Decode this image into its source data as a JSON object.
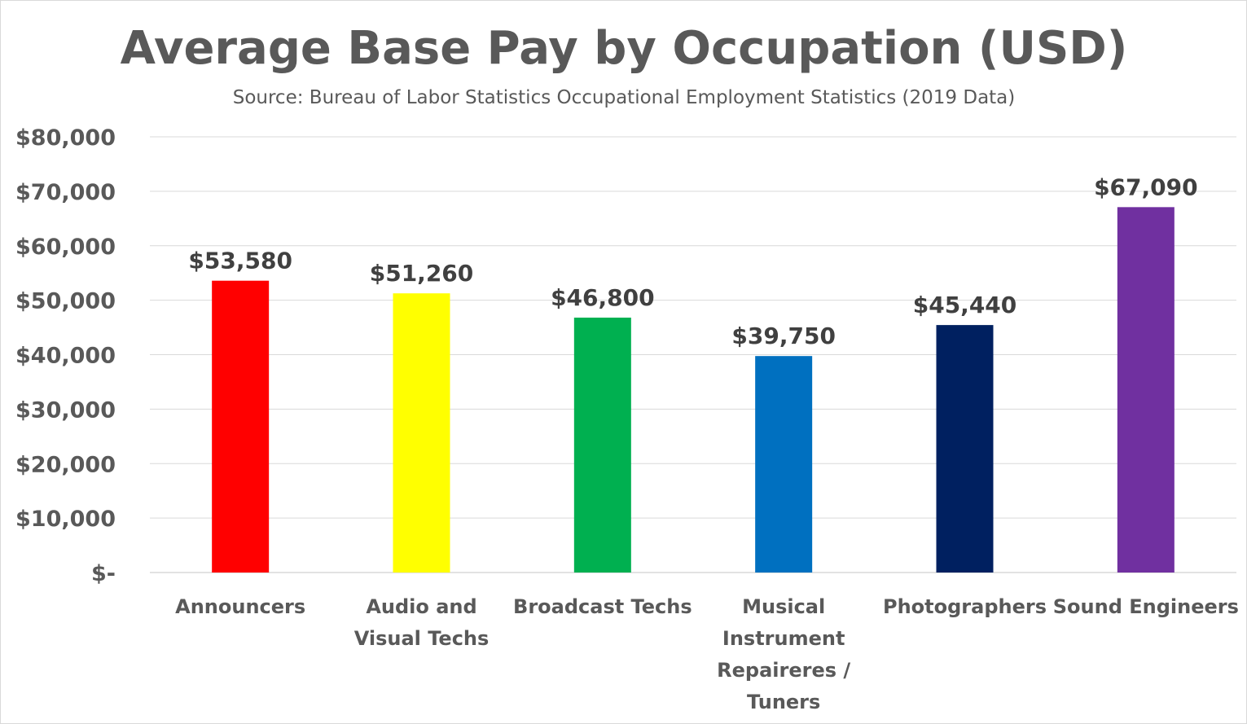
{
  "chart_data": {
    "type": "bar",
    "title": "Average Base Pay by Occupation (USD)",
    "subtitle": "Source: Bureau of Labor Statistics Occupational Employment Statistics (2019 Data)",
    "xlabel": "",
    "ylabel": "",
    "ylim": [
      0,
      80000
    ],
    "ytick_values": [
      0,
      10000,
      20000,
      30000,
      40000,
      50000,
      60000,
      70000,
      80000
    ],
    "ytick_labels": [
      "$-",
      "$10,000",
      "$20,000",
      "$30,000",
      "$40,000",
      "$50,000",
      "$60,000",
      "$70,000",
      "$80,000"
    ],
    "grid": true,
    "legend": "none",
    "categories": [
      [
        "Announcers"
      ],
      [
        "Audio and",
        "Visual Techs"
      ],
      [
        "Broadcast Techs"
      ],
      [
        "Musical",
        "Instrument",
        "Repaireres /",
        "Tuners"
      ],
      [
        "Photographers"
      ],
      [
        "Sound Engineers"
      ]
    ],
    "values": [
      53580,
      51260,
      46800,
      39750,
      45440,
      67090
    ],
    "data_labels": [
      "$53,580",
      "$51,260",
      "$46,800",
      "$39,750",
      "$45,440",
      "$67,090"
    ],
    "colors": [
      "#ff0000",
      "#ffff00",
      "#00b050",
      "#0070c0",
      "#002060",
      "#7030a0"
    ]
  }
}
